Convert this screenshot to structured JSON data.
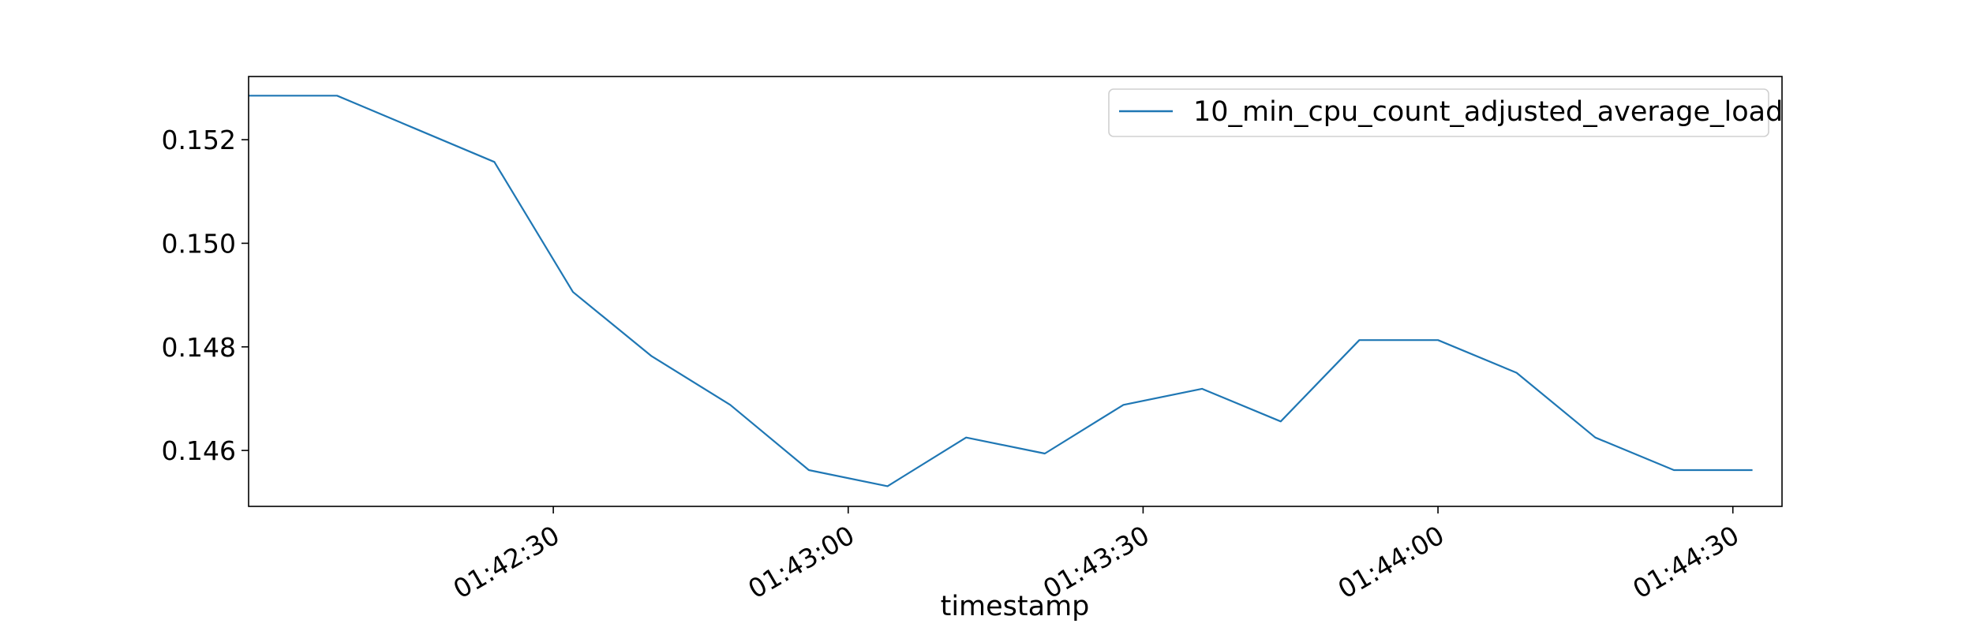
{
  "chart_data": {
    "type": "line",
    "title": "",
    "xlabel": "timestamp",
    "ylabel": "",
    "x": [
      "01:42:08",
      "01:42:16",
      "01:42:24",
      "01:42:32",
      "01:42:40",
      "01:42:48",
      "01:42:56",
      "01:43:04",
      "01:43:12",
      "01:43:20",
      "01:43:28",
      "01:43:36",
      "01:43:44",
      "01:43:52",
      "01:44:00",
      "01:44:08",
      "01:44:16",
      "01:44:24",
      "01:44:32"
    ],
    "series": [
      {
        "name": "10_min_cpu_count_adjusted_average_load",
        "color": "#1f77b4",
        "values": [
          0.15285,
          0.15221,
          0.15157,
          0.14906,
          0.14782,
          0.14688,
          0.14562,
          0.14531,
          0.14625,
          0.14594,
          0.14688,
          0.14719,
          0.14656,
          0.14813,
          0.14813,
          0.1475,
          0.14625,
          0.14562,
          0.14562
        ]
      }
    ],
    "x_first": "01:41:59",
    "x_start": "01:41:59",
    "xlim": [
      "01:41:59",
      "01:44:35"
    ],
    "ylim": [
      0.14492,
      0.15322
    ],
    "xticks": [
      "01:42:30",
      "01:43:00",
      "01:43:30",
      "01:44:00",
      "01:44:30"
    ],
    "yticks": [
      0.146,
      0.148,
      0.15,
      0.152
    ],
    "ytick_labels": [
      "0.146",
      "0.148",
      "0.150",
      "0.152"
    ],
    "grid": false,
    "legend_position": "top-right"
  }
}
